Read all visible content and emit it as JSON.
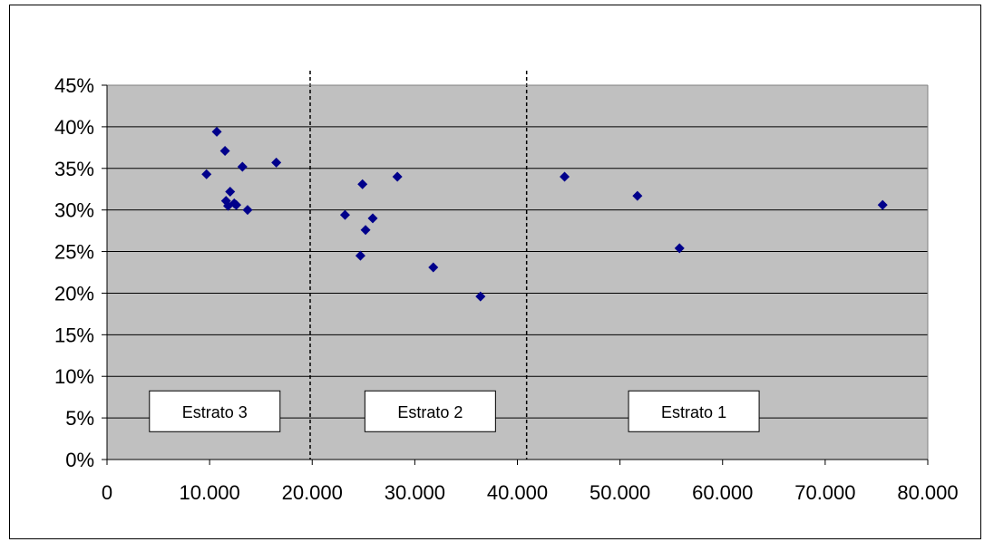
{
  "chart_data": {
    "type": "scatter",
    "title": "",
    "xlabel": "",
    "ylabel": "",
    "xlim": [
      0,
      80000
    ],
    "ylim": [
      0,
      0.45
    ],
    "x_ticks": [
      0,
      10000,
      20000,
      30000,
      40000,
      50000,
      60000,
      70000,
      80000
    ],
    "x_tick_labels": [
      "0",
      "10.000",
      "20.000",
      "30.000",
      "40.000",
      "50.000",
      "60.000",
      "70.000",
      "80.000"
    ],
    "y_ticks": [
      0,
      0.05,
      0.1,
      0.15,
      0.2,
      0.25,
      0.3,
      0.35,
      0.4,
      0.45
    ],
    "y_tick_labels": [
      "0%",
      "5%",
      "10%",
      "15%",
      "20%",
      "25%",
      "30%",
      "35%",
      "40%",
      "45%"
    ],
    "grid": "horizontal",
    "legend": "none",
    "colors": {
      "marker": "#00008B",
      "plot_bg": "#C0C0C0",
      "grid": "#000000"
    },
    "series": [
      {
        "marker": "diamond",
        "points": [
          [
            9700,
            0.343
          ],
          [
            10700,
            0.394
          ],
          [
            11500,
            0.371
          ],
          [
            11600,
            0.311
          ],
          [
            11800,
            0.305
          ],
          [
            12000,
            0.322
          ],
          [
            12400,
            0.308
          ],
          [
            12600,
            0.306
          ],
          [
            13200,
            0.352
          ],
          [
            13700,
            0.3
          ],
          [
            16500,
            0.357
          ],
          [
            23200,
            0.294
          ],
          [
            24700,
            0.245
          ],
          [
            24900,
            0.331
          ],
          [
            25200,
            0.276
          ],
          [
            25900,
            0.29
          ],
          [
            28300,
            0.34
          ],
          [
            31800,
            0.231
          ],
          [
            36400,
            0.196
          ],
          [
            44600,
            0.34
          ],
          [
            51700,
            0.317
          ],
          [
            55800,
            0.254
          ],
          [
            75600,
            0.306
          ]
        ]
      }
    ],
    "dividers": [
      19800,
      40900
    ],
    "annotations": [
      {
        "text": "Estrato 3",
        "x": 10500,
        "y": 0.058
      },
      {
        "text": "Estrato 2",
        "x": 31500,
        "y": 0.058
      },
      {
        "text": "Estrato 1",
        "x": 57200,
        "y": 0.058
      }
    ]
  }
}
